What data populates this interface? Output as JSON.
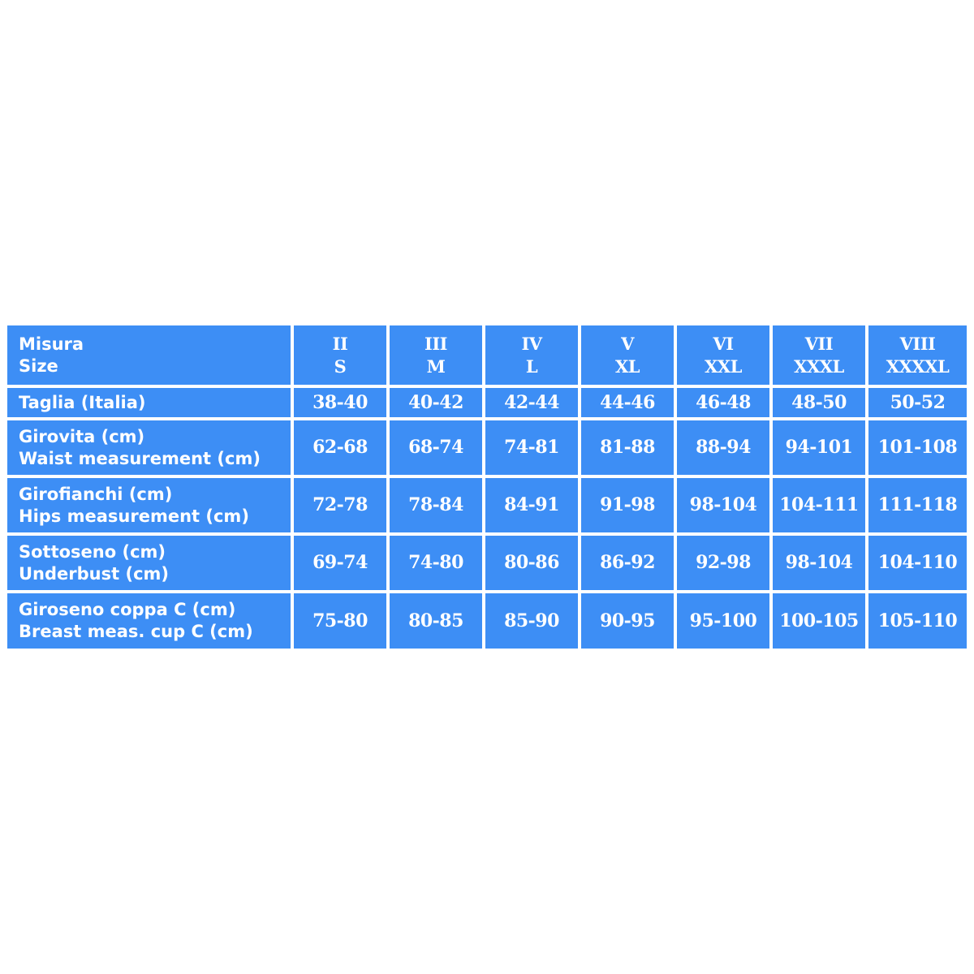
{
  "table": {
    "header": {
      "label_lines": [
        "Misura",
        "Size"
      ],
      "sizes": [
        [
          "II",
          "S"
        ],
        [
          "III",
          "M"
        ],
        [
          "IV",
          "L"
        ],
        [
          "V",
          "XL"
        ],
        [
          "VI",
          "XXL"
        ],
        [
          "VII",
          "XXXL"
        ],
        [
          "VIII",
          "XXXXL"
        ]
      ]
    },
    "rows": [
      {
        "label_lines": [
          "Taglia (Italia)"
        ],
        "values": [
          "38-40",
          "40-42",
          "42-44",
          "44-46",
          "46-48",
          "48-50",
          "50-52"
        ]
      },
      {
        "label_lines": [
          "Girovita  (cm)",
          "Waist measurement  (cm)"
        ],
        "values": [
          "62-68",
          "68-74",
          "74-81",
          "81-88",
          "88-94",
          "94-101",
          "101-108"
        ]
      },
      {
        "label_lines": [
          "Girofianchi  (cm)",
          "Hips measurement (cm)"
        ],
        "values": [
          "72-78",
          "78-84",
          "84-91",
          "91-98",
          "98-104",
          "104-111",
          "111-118"
        ]
      },
      {
        "label_lines": [
          "Sottoseno (cm)",
          "Underbust (cm)"
        ],
        "values": [
          "69-74",
          "74-80",
          "80-86",
          "86-92",
          "92-98",
          "98-104",
          "104-110"
        ]
      },
      {
        "label_lines": [
          "Giroseno coppa C  (cm)",
          "Breast meas. cup C (cm)"
        ],
        "values": [
          "75-80",
          "80-85",
          "85-90",
          "90-95",
          "95-100",
          "100-105",
          "105-110"
        ]
      }
    ]
  },
  "colors": {
    "cell": "#3d8ef5",
    "text": "#ffffff",
    "background": "#ffffff"
  }
}
